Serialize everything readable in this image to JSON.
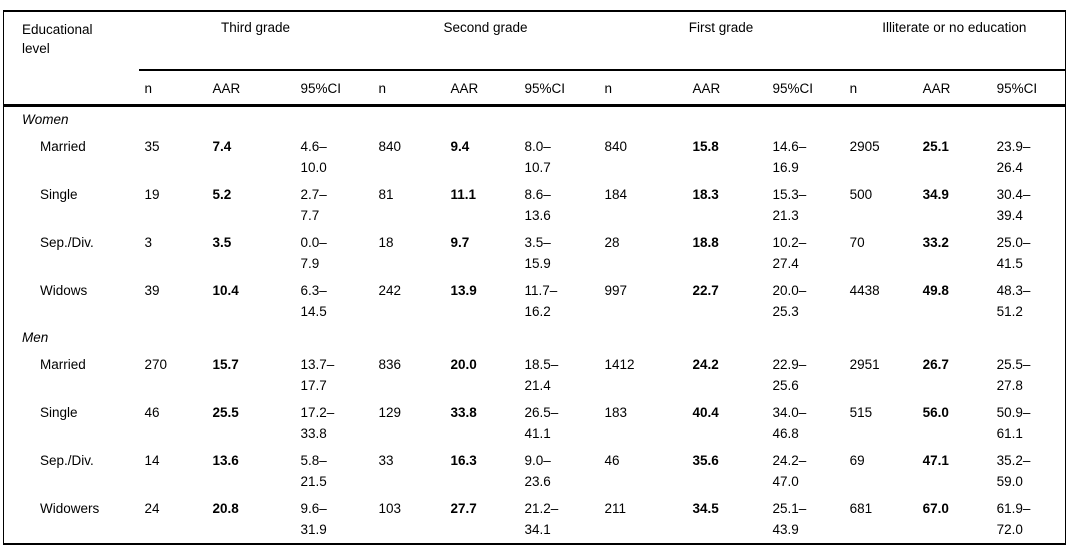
{
  "colors": {
    "background": "#ffffff",
    "text": "#000000",
    "rule": "#000000"
  },
  "table": {
    "row_header": "Educational level",
    "groups": [
      {
        "label": "Third grade"
      },
      {
        "label": "Second grade"
      },
      {
        "label": "First grade"
      },
      {
        "label": "Illiterate or no education"
      }
    ],
    "sub_headers": [
      "n",
      "AAR",
      "95%CI"
    ],
    "sections": [
      {
        "label": "Women",
        "rows": [
          {
            "label": "Married",
            "cells": [
              [
                "35",
                "7.4",
                "4.6–",
                "10.0"
              ],
              [
                "840",
                "9.4",
                "8.0–",
                "10.7"
              ],
              [
                "840",
                "15.8",
                "14.6–",
                "16.9"
              ],
              [
                "2905",
                "25.1",
                "23.9–",
                "26.4"
              ]
            ]
          },
          {
            "label": "Single",
            "cells": [
              [
                "19",
                "5.2",
                "2.7–",
                "7.7"
              ],
              [
                "81",
                "11.1",
                "8.6–",
                "13.6"
              ],
              [
                "184",
                "18.3",
                "15.3–",
                "21.3"
              ],
              [
                "500",
                "34.9",
                "30.4–",
                "39.4"
              ]
            ]
          },
          {
            "label": "Sep./Div.",
            "cells": [
              [
                "3",
                "3.5",
                "0.0–",
                "7.9"
              ],
              [
                "18",
                "9.7",
                "3.5–",
                "15.9"
              ],
              [
                "28",
                "18.8",
                "10.2–",
                "27.4"
              ],
              [
                "70",
                "33.2",
                "25.0–",
                "41.5"
              ]
            ]
          },
          {
            "label": "Widows",
            "cells": [
              [
                "39",
                "10.4",
                "6.3–",
                "14.5"
              ],
              [
                "242",
                "13.9",
                "11.7–",
                "16.2"
              ],
              [
                "997",
                "22.7",
                "20.0–",
                "25.3"
              ],
              [
                "4438",
                "49.8",
                "48.3–",
                "51.2"
              ]
            ]
          }
        ]
      },
      {
        "label": "Men",
        "rows": [
          {
            "label": "Married",
            "cells": [
              [
                "270",
                "15.7",
                "13.7–",
                "17.7"
              ],
              [
                "836",
                "20.0",
                "18.5–",
                "21.4"
              ],
              [
                "1412",
                "24.2",
                "22.9–",
                "25.6"
              ],
              [
                "2951",
                "26.7",
                "25.5–",
                "27.8"
              ]
            ]
          },
          {
            "label": "Single",
            "cells": [
              [
                "46",
                "25.5",
                "17.2–",
                "33.8"
              ],
              [
                "129",
                "33.8",
                "26.5–",
                "41.1"
              ],
              [
                "183",
                "40.4",
                "34.0–",
                "46.8"
              ],
              [
                "515",
                "56.0",
                "50.9–",
                "61.1"
              ]
            ]
          },
          {
            "label": "Sep./Div.",
            "cells": [
              [
                "14",
                "13.6",
                "5.8–",
                "21.5"
              ],
              [
                "33",
                "16.3",
                "9.0–",
                "23.6"
              ],
              [
                "46",
                "35.6",
                "24.2–",
                "47.0"
              ],
              [
                "69",
                "47.1",
                "35.2–",
                "59.0"
              ]
            ]
          },
          {
            "label": "Widowers",
            "cells": [
              [
                "24",
                "20.8",
                "9.6–",
                "31.9"
              ],
              [
                "103",
                "27.7",
                "21.2–",
                "34.1"
              ],
              [
                "211",
                "34.5",
                "25.1–",
                "43.9"
              ],
              [
                "681",
                "67.0",
                "61.9–",
                "72.0"
              ]
            ]
          }
        ]
      }
    ]
  }
}
